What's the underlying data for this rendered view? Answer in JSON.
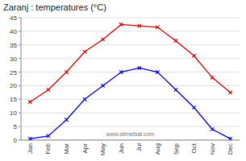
{
  "chart_data": {
    "type": "line",
    "title": "Zaranj : temperatures (°C)",
    "categories": [
      "Jan",
      "Feb",
      "Mar",
      "Apr",
      "May",
      "Jun",
      "Jul",
      "Aug",
      "Sep",
      "Oct",
      "Nov",
      "Dec"
    ],
    "series": [
      {
        "color": "#cc0000",
        "marker": "x",
        "values": [
          14,
          18.5,
          25,
          32.5,
          37,
          42.5,
          42,
          41.5,
          36.5,
          31,
          23,
          17.5
        ]
      },
      {
        "color": "#0000cc",
        "marker": "x",
        "values": [
          0.5,
          1.5,
          7.5,
          15,
          20,
          25,
          26.5,
          25,
          18.5,
          12,
          4,
          0.5
        ]
      }
    ],
    "ylim": [
      0,
      45
    ],
    "yticks": [
      0,
      5,
      10,
      15,
      20,
      25,
      30,
      35,
      40,
      45
    ],
    "grid": true,
    "annotations": [
      "www.allmetsat.com"
    ]
  }
}
